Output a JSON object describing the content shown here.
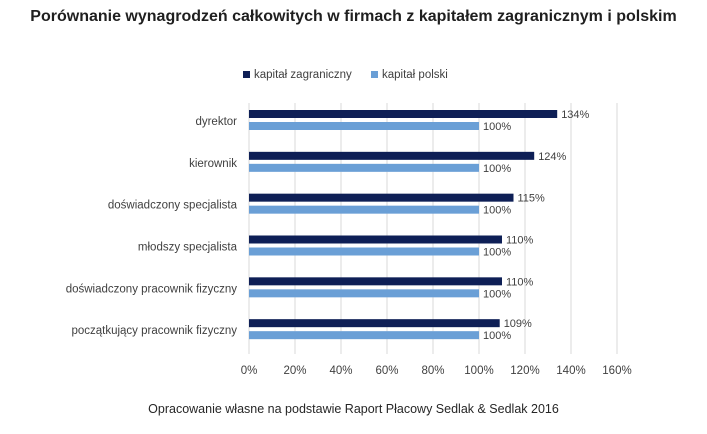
{
  "page": {
    "title": "Porównanie wynagrodzeń całkowitych w firmach z kapitałem zagranicznym i polskim",
    "source": "Opracowanie własne na podstawie Raport Płacowy Sedlak & Sedlak 2016"
  },
  "colors": {
    "series_foreign": "#0e1f56",
    "series_polish": "#6a9fd6",
    "grid": "#d9d9d9",
    "text": "#404040"
  },
  "chart_data": {
    "type": "bar",
    "orientation": "horizontal",
    "title": "Porównanie wynagrodzeń całkowitych w firmach z kapitałem zagranicznym i polskim",
    "categories": [
      "dyrektor",
      "kierownik",
      "doświadczony specjalista",
      "młodszy specjalista",
      "doświadczony pracownik fizyczny",
      "początkujący pracownik fizyczny"
    ],
    "series": [
      {
        "name": "kapitał zagraniczny",
        "values": [
          134,
          124,
          115,
          110,
          110,
          109
        ],
        "labels": [
          "134%",
          "124%",
          "115%",
          "110%",
          "110%",
          "109%"
        ]
      },
      {
        "name": "kapitał polski",
        "values": [
          100,
          100,
          100,
          100,
          100,
          100
        ],
        "labels": [
          "100%",
          "100%",
          "100%",
          "100%",
          "100%",
          "100%"
        ]
      }
    ],
    "xlim": [
      0,
      160
    ],
    "xticks": [
      0,
      20,
      40,
      60,
      80,
      100,
      120,
      140,
      160
    ],
    "xtick_labels": [
      "0%",
      "20%",
      "40%",
      "60%",
      "80%",
      "100%",
      "120%",
      "140%",
      "160%"
    ],
    "grid": true,
    "legend_position": "top"
  }
}
